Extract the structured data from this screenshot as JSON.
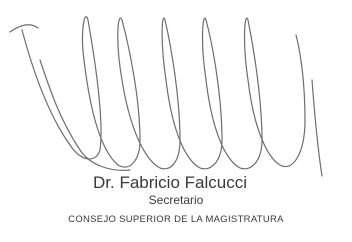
{
  "signature_block": {
    "name": "Dr. Fabricio Falcucci",
    "role": "Secretario",
    "institution": "CONSEJO SUPERIOR DE LA MAGISTRATURA"
  }
}
